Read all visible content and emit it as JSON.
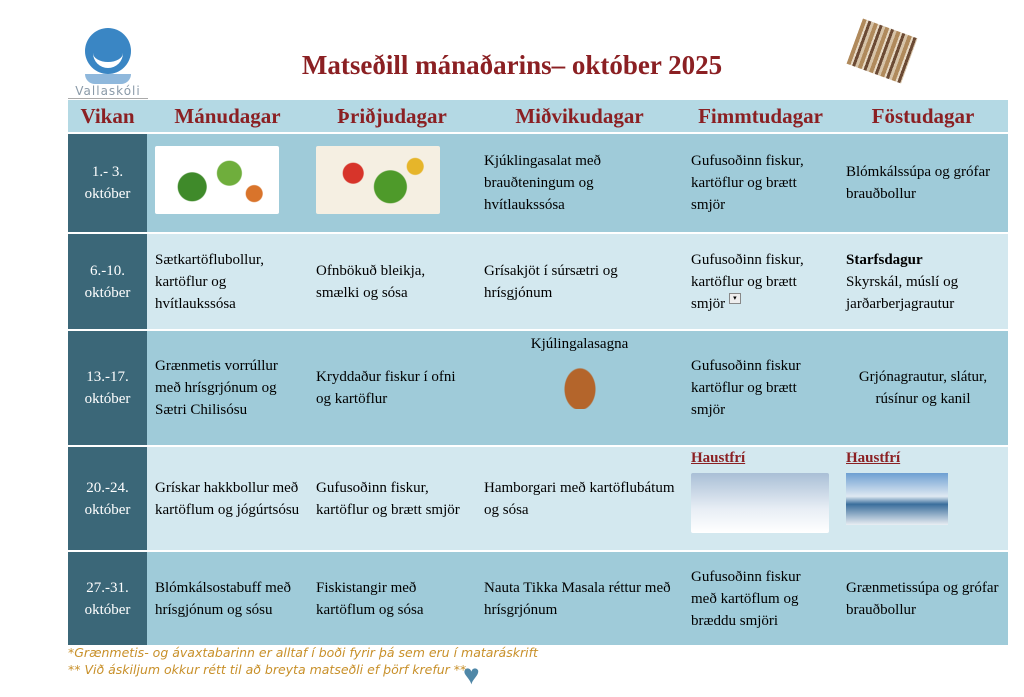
{
  "header": {
    "logo_text": "Vallaskóli",
    "title": "Matseðill mánaðarins– október 2025"
  },
  "columns": [
    "Vikan",
    "Mánudagar",
    "Þriðjudagar",
    "Miðvikudagar",
    "Fimmtudagar",
    "Föstudagar"
  ],
  "rows": [
    {
      "week": [
        "1.- 3.",
        "október"
      ],
      "mon": "",
      "tue": "",
      "wed": "Kjúklingasalat með brauðteningum og hvítlaukssósa",
      "thu": "Gufusoðinn fiskur, kartöflur og brætt smjör",
      "fri": "Blómkálssúpa og grófar brauðbollur"
    },
    {
      "week": [
        "6.-10.",
        "október"
      ],
      "mon": "Sætkartöflubollur, kartöflur og hvítlaukssósa",
      "tue": "Ofnbökuð bleikja, smælki og sósa",
      "wed": "Grísakjöt í súrsætri og hrísgjónum",
      "thu": "Gufusoðinn fiskur, kartöflur og brætt smjör",
      "fri_bold": "Starfsdagur",
      "fri": "Skyrskál, múslí og jarðarberjagrautur"
    },
    {
      "week": [
        "13.-17.",
        "október"
      ],
      "mon": "Grænmetis vorrúllur með hrísgrjónum og Sætri Chilisósu",
      "tue": "Kryddaður fiskur í ofni og kartöflur",
      "wed": "Kjúlingalasagna",
      "thu": "Gufusoðinn fiskur kartöflur og brætt smjör",
      "fri": "Grjónagrautur, slátur, rúsínur og kanil"
    },
    {
      "week": [
        "20.-24.",
        "október"
      ],
      "mon": "Grískar hakkbollur með kartöflum og jógúrtsósu",
      "tue": "Gufusoðinn fiskur, kartöflur og brætt smjör",
      "wed": "Hamborgari með kartöflubátum og sósa",
      "thu": "Haustfrí",
      "fri": "Haustfrí"
    },
    {
      "week": [
        "27.-31.",
        "október"
      ],
      "mon": "Blómkálsostabuff með hrísgjónum og sósu",
      "tue": "Fiskistangir með kartöflum og sósa",
      "wed": "Nauta Tikka Masala réttur með hrísgrjónum",
      "thu": "Gufusoðinn fiskur með kartöflum og bræddu smjöri",
      "fri": "Grænmetissúpa og grófar brauðbollur"
    }
  ],
  "footer": {
    "note1": "*Grænmetis- og ávaxtabarinn er alltaf í boði fyrir þá sem eru í mataráskrift",
    "note2": "** Við áskiljum okkur rétt til að breyta matseðli ef þörf krefur **"
  },
  "colors": {
    "title": "#8b2023",
    "week_col": "#3b6778",
    "row_dark": "#9fcbd9",
    "row_light": "#d3e8ef",
    "footer": "#c8902a",
    "heart": "#4f87a7"
  }
}
